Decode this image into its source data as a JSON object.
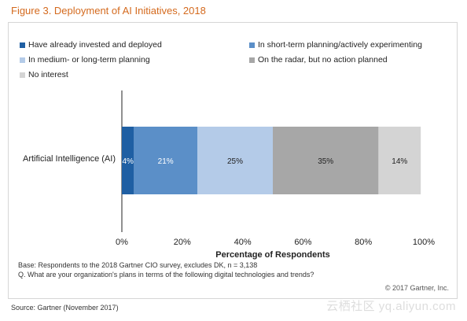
{
  "figure_title": "Figure 3. Deployment of AI Initiatives, 2018",
  "chart_data": {
    "type": "bar",
    "orientation": "horizontal",
    "stacked": true,
    "categories": [
      "Artificial Intelligence (AI)"
    ],
    "series": [
      {
        "name": "Have already invested and deployed",
        "values": [
          4
        ],
        "color": "#1f5fa3",
        "label_color": "#ffffff"
      },
      {
        "name": "In short-term planning/actively experimenting",
        "values": [
          21
        ],
        "color": "#5b8fc8",
        "label_color": "#ffffff"
      },
      {
        "name": "In medium- or long-term planning",
        "values": [
          25
        ],
        "color": "#b4cbe8",
        "label_color": "#222222"
      },
      {
        "name": "On the radar, but no action planned",
        "values": [
          35
        ],
        "color": "#a7a7a7",
        "label_color": "#222222"
      },
      {
        "name": "No interest",
        "values": [
          14
        ],
        "color": "#d4d4d4",
        "label_color": "#222222"
      }
    ],
    "data_labels": [
      "4%",
      "21%",
      "25%",
      "35%",
      "14%"
    ],
    "xlabel": "Percentage of Respondents",
    "xlim": [
      0,
      100
    ],
    "xticks": [
      0,
      20,
      40,
      60,
      80,
      100
    ],
    "xtick_labels": [
      "0%",
      "20%",
      "40%",
      "60%",
      "80%",
      "100%"
    ],
    "grid": false,
    "legend_position": "top"
  },
  "notes": {
    "base": "Base: Respondents to the 2018 Gartner CIO survey, excludes DK, n = 3,138",
    "question": "Q. What are your organization's plans in terms of the following digital technologies and trends?",
    "copyright": "© 2017 Gartner, Inc."
  },
  "source": "Source: Gartner (November 2017)",
  "watermark": "云栖社区 yq.aliyun.com"
}
